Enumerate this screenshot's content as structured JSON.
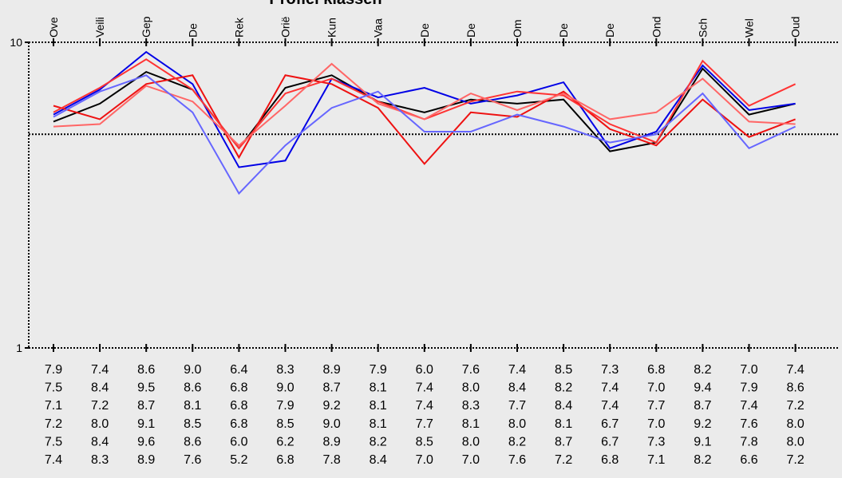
{
  "chart_data": {
    "type": "line",
    "title": "Profiel klassen",
    "categories": [
      "Ove",
      "Veili",
      "Gep",
      "De",
      "Rek",
      "Oriё",
      "Kun",
      "Vaa",
      "De",
      "De",
      "Om",
      "De",
      "De",
      "Ond",
      "Sch",
      "Wel",
      "Oud"
    ],
    "y_scale": "log",
    "ylim": [
      1,
      10
    ],
    "y_ticks": [
      "1",
      "10"
    ],
    "grid": "dotted lines at 10 and ~5",
    "series": [
      {
        "color": "#000000",
        "values": [
          5.5,
          6.3,
          8.0,
          7.0,
          4.5,
          7.1,
          7.8,
          6.4,
          5.9,
          6.5,
          6.3,
          6.5,
          4.4,
          4.7,
          8.2,
          5.8,
          6.3
        ]
      },
      {
        "color": "#0000e6",
        "values": [
          5.8,
          7.0,
          9.3,
          7.3,
          3.9,
          4.1,
          7.6,
          6.6,
          7.1,
          6.3,
          6.7,
          7.4,
          4.5,
          5.1,
          8.4,
          6.0,
          6.3
        ]
      },
      {
        "color": "#ee1111",
        "values": [
          6.2,
          5.6,
          7.3,
          7.8,
          4.2,
          7.8,
          7.3,
          6.1,
          4.0,
          5.9,
          5.7,
          6.9,
          5.2,
          4.6,
          6.5,
          4.9,
          5.6
        ]
      },
      {
        "color": "#ff3333",
        "values": [
          5.9,
          7.1,
          8.8,
          7.0,
          4.5,
          6.8,
          7.6,
          6.4,
          5.6,
          6.4,
          6.9,
          6.7,
          5.4,
          4.7,
          8.7,
          6.2,
          7.3
        ]
      },
      {
        "color": "#ff6666",
        "values": [
          5.3,
          5.4,
          7.2,
          6.4,
          4.6,
          6.2,
          8.5,
          6.3,
          5.6,
          6.8,
          6.0,
          6.8,
          5.6,
          5.9,
          7.6,
          5.5,
          5.4
        ]
      },
      {
        "color": "#6666ff",
        "values": [
          5.7,
          6.9,
          7.8,
          5.9,
          3.2,
          4.6,
          6.1,
          6.9,
          5.1,
          5.1,
          5.8,
          5.3,
          4.7,
          5.0,
          6.8,
          4.5,
          5.3
        ]
      }
    ],
    "table": [
      [
        "7.9",
        "7.4",
        "8.6",
        "9.0",
        "6.4",
        "8.3",
        "8.9",
        "7.9",
        "6.0",
        "7.6",
        "7.4",
        "8.5",
        "7.3",
        "6.8",
        "8.2",
        "7.0",
        "7.4"
      ],
      [
        "7.5",
        "8.4",
        "9.5",
        "8.6",
        "6.8",
        "9.0",
        "8.7",
        "8.1",
        "7.4",
        "8.0",
        "8.4",
        "8.2",
        "7.4",
        "7.0",
        "9.4",
        "7.9",
        "8.6"
      ],
      [
        "7.1",
        "7.2",
        "8.7",
        "8.1",
        "6.8",
        "7.9",
        "9.2",
        "8.1",
        "7.4",
        "8.3",
        "7.7",
        "8.4",
        "7.4",
        "7.7",
        "8.7",
        "7.4",
        "7.2"
      ],
      [
        "7.2",
        "8.0",
        "9.1",
        "8.5",
        "6.8",
        "8.5",
        "9.0",
        "8.1",
        "7.7",
        "8.1",
        "8.0",
        "8.1",
        "6.7",
        "7.0",
        "9.2",
        "7.6",
        "8.0"
      ],
      [
        "7.5",
        "8.4",
        "9.6",
        "8.6",
        "6.0",
        "6.2",
        "8.9",
        "8.2",
        "8.5",
        "8.0",
        "8.2",
        "8.7",
        "6.7",
        "7.3",
        "9.1",
        "7.8",
        "8.0"
      ],
      [
        "7.4",
        "8.3",
        "8.9",
        "7.6",
        "5.2",
        "6.8",
        "7.8",
        "8.4",
        "7.0",
        "7.0",
        "7.6",
        "7.2",
        "6.8",
        "7.1",
        "8.2",
        "6.6",
        "7.2"
      ]
    ]
  }
}
